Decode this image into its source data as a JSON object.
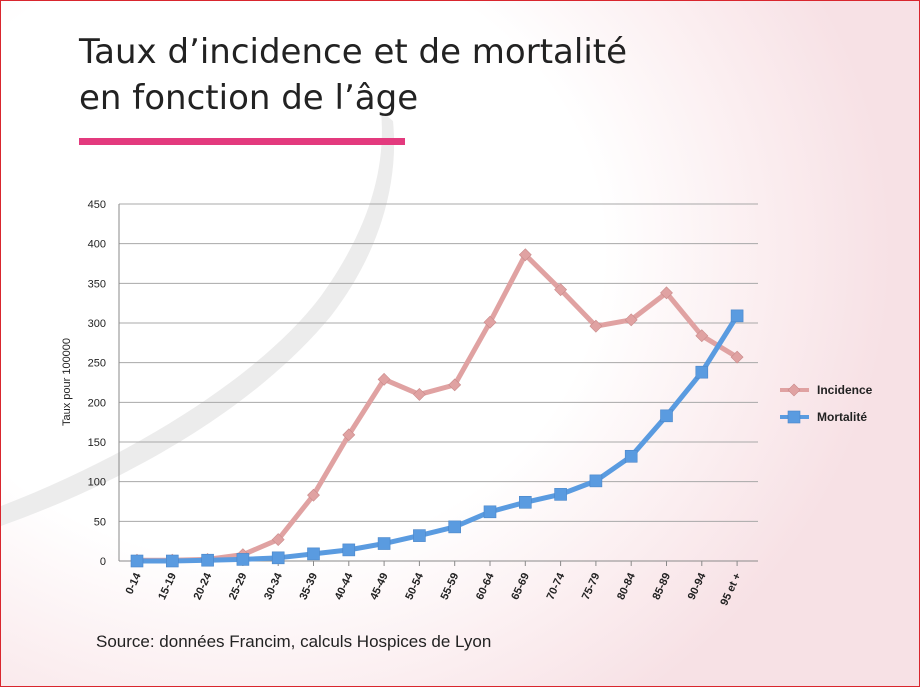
{
  "slide": {
    "title_line1": "Taux d’incidence et de mortalité",
    "title_line2": "en fonction de l’âge",
    "source": "Source: données Francim, calculs Hospices de Lyon",
    "accent_color": "#e33a7e",
    "border_color": "#d9262e"
  },
  "chart_data": {
    "type": "line",
    "title": "",
    "xlabel": "",
    "ylabel": "Taux pour 100000",
    "ylim": [
      0,
      450
    ],
    "yticks": [
      0,
      50,
      100,
      150,
      200,
      250,
      300,
      350,
      400,
      450
    ],
    "grid": true,
    "legend_position": "right",
    "categories": [
      "0-14",
      "15-19",
      "20-24",
      "25-29",
      "30-34",
      "35-39",
      "40-44",
      "45-49",
      "50-54",
      "55-59",
      "60-64",
      "65-69",
      "70-74",
      "75-79",
      "80-84",
      "85-89",
      "90-94",
      "95 et +"
    ],
    "series": [
      {
        "name": "Incidence",
        "color": "#e0a2a2",
        "marker": "diamond",
        "values": [
          1,
          1,
          2,
          8,
          27,
          83,
          159,
          229,
          210,
          222,
          301,
          386,
          342,
          296,
          304,
          338,
          284,
          257
        ]
      },
      {
        "name": "Mortalité",
        "color": "#5a9be0",
        "marker": "square",
        "values": [
          0,
          0,
          1,
          2,
          4,
          9,
          14,
          22,
          32,
          43,
          62,
          74,
          84,
          101,
          132,
          183,
          238,
          309
        ]
      }
    ]
  }
}
